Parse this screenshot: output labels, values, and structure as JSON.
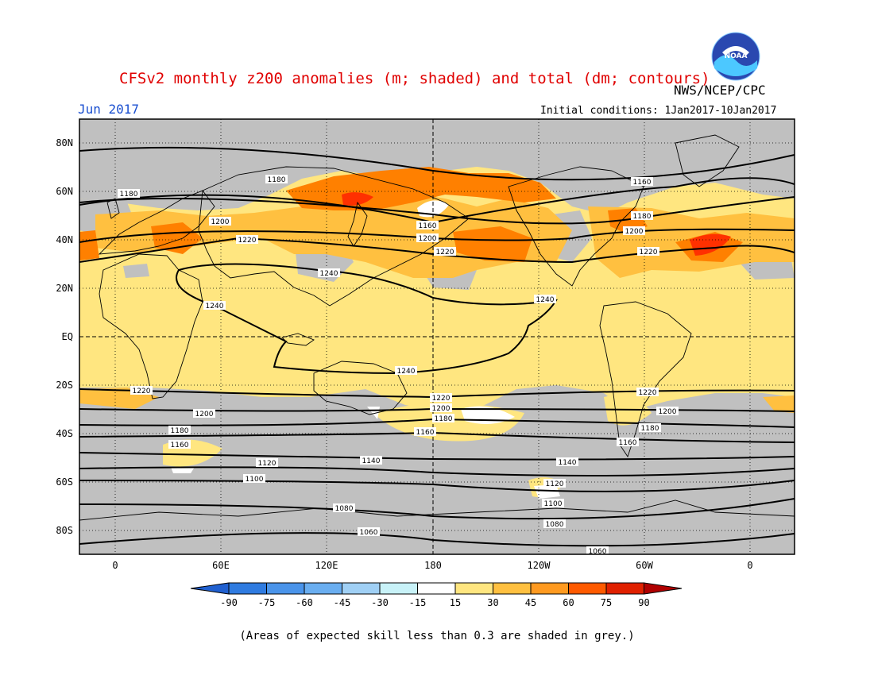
{
  "header": {
    "title": "CFSv2 monthly z200 anomalies (m; shaded) and total (dm; contours)",
    "org": "NWS/NCEP/CPC",
    "month": "Jun 2017",
    "initial_conditions": "Initial conditions: 1Jan2017-10Jan2017"
  },
  "logo": {
    "text": "NOAA",
    "icon": "noaa-logo"
  },
  "map": {
    "lat_labels": [
      "80N",
      "60N",
      "40N",
      "20N",
      "EQ",
      "20S",
      "40S",
      "60S",
      "80S"
    ],
    "lon_labels": [
      "0",
      "60E",
      "120E",
      "180",
      "120W",
      "60W",
      "0"
    ],
    "contour_labels": [
      "1180",
      "1180",
      "1160",
      "1200",
      "1220",
      "1160",
      "1180",
      "1200",
      "1220",
      "1240",
      "1240",
      "1240",
      "1240",
      "1220",
      "1220",
      "1200",
      "1180",
      "1220",
      "1200",
      "1180",
      "1200",
      "1180",
      "1160",
      "1160",
      "1160",
      "1140",
      "1140",
      "1120",
      "1120",
      "1100",
      "1100",
      "1080",
      "1080",
      "1060",
      "1060",
      "1220",
      "1200"
    ],
    "colors": {
      "grey": "#c0c0c0",
      "light_orange": "#ffe680",
      "orange": "#ffc040",
      "dark_orange": "#ff8000",
      "red": "#ff3000",
      "white": "#ffffff"
    }
  },
  "colorbar": {
    "ticks": [
      "-90",
      "-75",
      "-60",
      "-45",
      "-30",
      "-15",
      "15",
      "30",
      "45",
      "60",
      "75",
      "90"
    ],
    "colors": [
      "#2060d0",
      "#2f7be0",
      "#4a94ea",
      "#6aaef0",
      "#a0d0f5",
      "#c8f2f8",
      "#ffffff",
      "#ffe680",
      "#ffc040",
      "#ff9a20",
      "#ff5a00",
      "#e02000",
      "#b00000"
    ]
  },
  "footnote": "(Areas of expected skill less than 0.3 are shaded in grey.)"
}
